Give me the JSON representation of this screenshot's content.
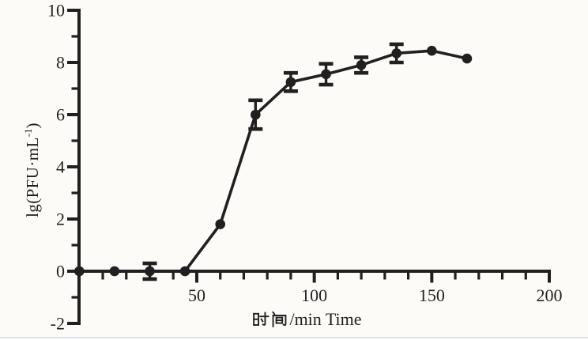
{
  "figure": {
    "background_color": "#fcfbf7",
    "ink_color": "#231f20",
    "bottom_edge_color": "#dde2e8"
  },
  "chart_data": {
    "type": "line",
    "title": "",
    "xlabel": "时间/min Time",
    "xlabel_latin_part": "/min Time",
    "ylabel": "lg(PFU·mL⁻¹)",
    "ylabel_parts": {
      "base": "lg(PFU·mL",
      "sup": "-1",
      "close": ")"
    },
    "x": [
      0,
      15,
      30,
      45,
      60,
      75,
      90,
      105,
      120,
      135,
      150,
      165
    ],
    "y": [
      0,
      0,
      0,
      0,
      1.8,
      6.0,
      7.25,
      7.55,
      7.9,
      8.35,
      8.45,
      8.15
    ],
    "yerr": [
      0,
      0,
      0.3,
      0,
      0,
      0.55,
      0.35,
      0.4,
      0.3,
      0.35,
      0,
      0
    ],
    "xlim": [
      0,
      200
    ],
    "ylim": [
      -2,
      10
    ],
    "x_major_ticks": [
      50,
      100,
      150,
      200
    ],
    "x_minor_tick_step": 10,
    "y_major_ticks": [
      -2,
      0,
      2,
      4,
      6,
      8,
      10
    ],
    "y_minor_ticks": [
      -1,
      1,
      3,
      5,
      7,
      9
    ],
    "grid": false,
    "legend": false,
    "marker": "filled-circle",
    "line_color": "#231f20",
    "error_bars": true
  }
}
